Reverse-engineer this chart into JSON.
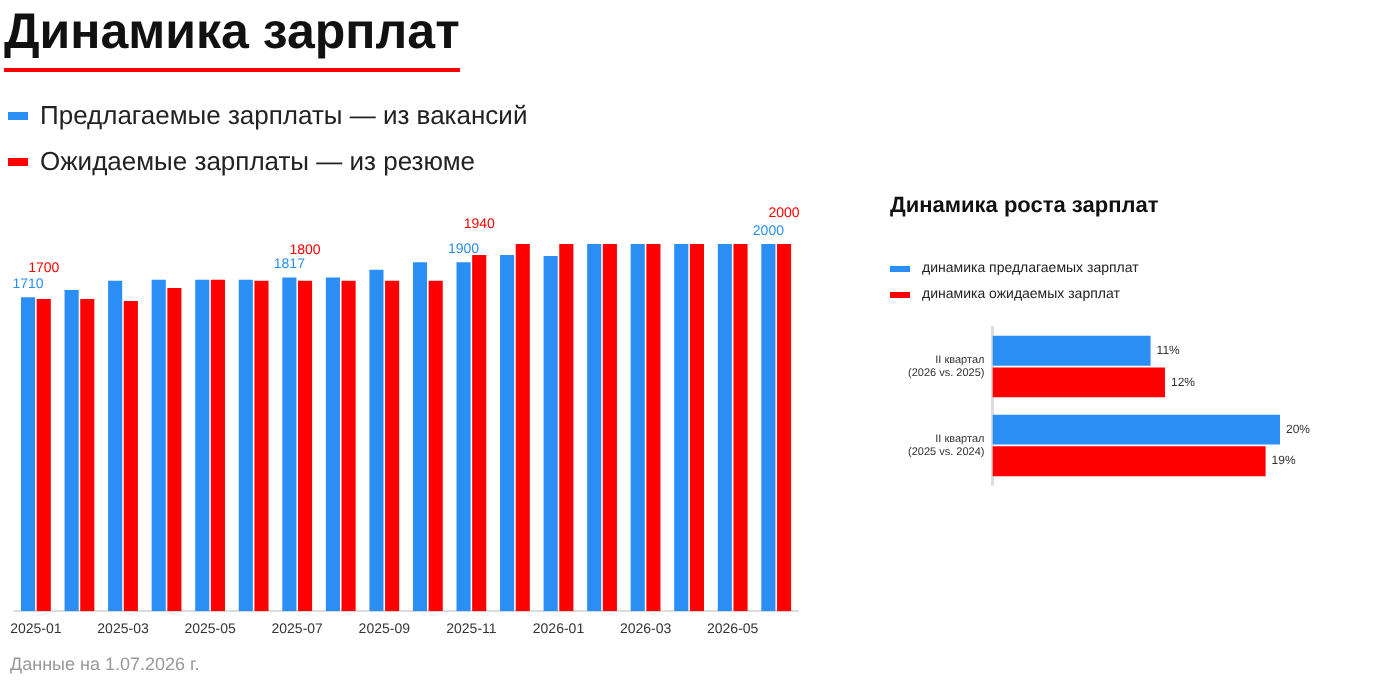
{
  "chart_data": [
    {
      "type": "bar",
      "title": "Динамика зарплат",
      "legend": "top left",
      "tick_labels": "x",
      "ylim": [
        0,
        2000
      ],
      "categories": [
        "2025-01",
        null,
        "2025-03",
        null,
        "2025-05",
        null,
        "2025-07",
        null,
        "2025-09",
        null,
        "2025-11",
        null,
        "2026-01",
        null,
        "2026-03",
        null,
        "2026-05",
        null
      ],
      "series": [
        {
          "name": "Предлагаемые зарплаты — из вакансий",
          "color": "#2a8ef5",
          "values": [
            1710,
            1750,
            1800,
            1805,
            1805,
            1805,
            1817,
            1817,
            1860,
            1900,
            1900,
            1940,
            1935,
            2000,
            2000,
            2000,
            2000,
            2000
          ],
          "value_labels": [
            "1710",
            null,
            null,
            null,
            null,
            null,
            "1817",
            null,
            null,
            null,
            "1900",
            null,
            null,
            null,
            null,
            null,
            null,
            "2000"
          ]
        },
        {
          "name": "Ожидаемые зарплаты — из резюме",
          "color": "#ff0000",
          "values": [
            1700,
            1700,
            1690,
            1760,
            1805,
            1800,
            1800,
            1800,
            1800,
            1800,
            1940,
            2000,
            2000,
            2000,
            2000,
            2000,
            2000,
            2000
          ],
          "value_labels": [
            "1700",
            null,
            null,
            null,
            null,
            null,
            "1800",
            null,
            null,
            null,
            "1940",
            null,
            null,
            null,
            null,
            null,
            null,
            "2000"
          ]
        }
      ],
      "annotations": [
        "Данные на 1.07.2026 г."
      ]
    },
    {
      "type": "bar",
      "orientation": "horizontal",
      "title": "Динамика роста зарплат",
      "legend": "top left",
      "tick_labels": "y",
      "xlim": [
        0,
        20
      ],
      "categories": [
        "II квартал\n(2026 vs. 2025)",
        "II квартал\n(2025 vs. 2024)"
      ],
      "series": [
        {
          "name": "динамика предлагаемых зарплат",
          "color": "#2a8ef5",
          "values": [
            11,
            20
          ],
          "value_labels": [
            "11%",
            "20%"
          ]
        },
        {
          "name": "динамика ожидаемых зарплат",
          "color": "#ff0000",
          "values": [
            12,
            19
          ],
          "value_labels": [
            "12%",
            "19%"
          ]
        }
      ]
    }
  ]
}
